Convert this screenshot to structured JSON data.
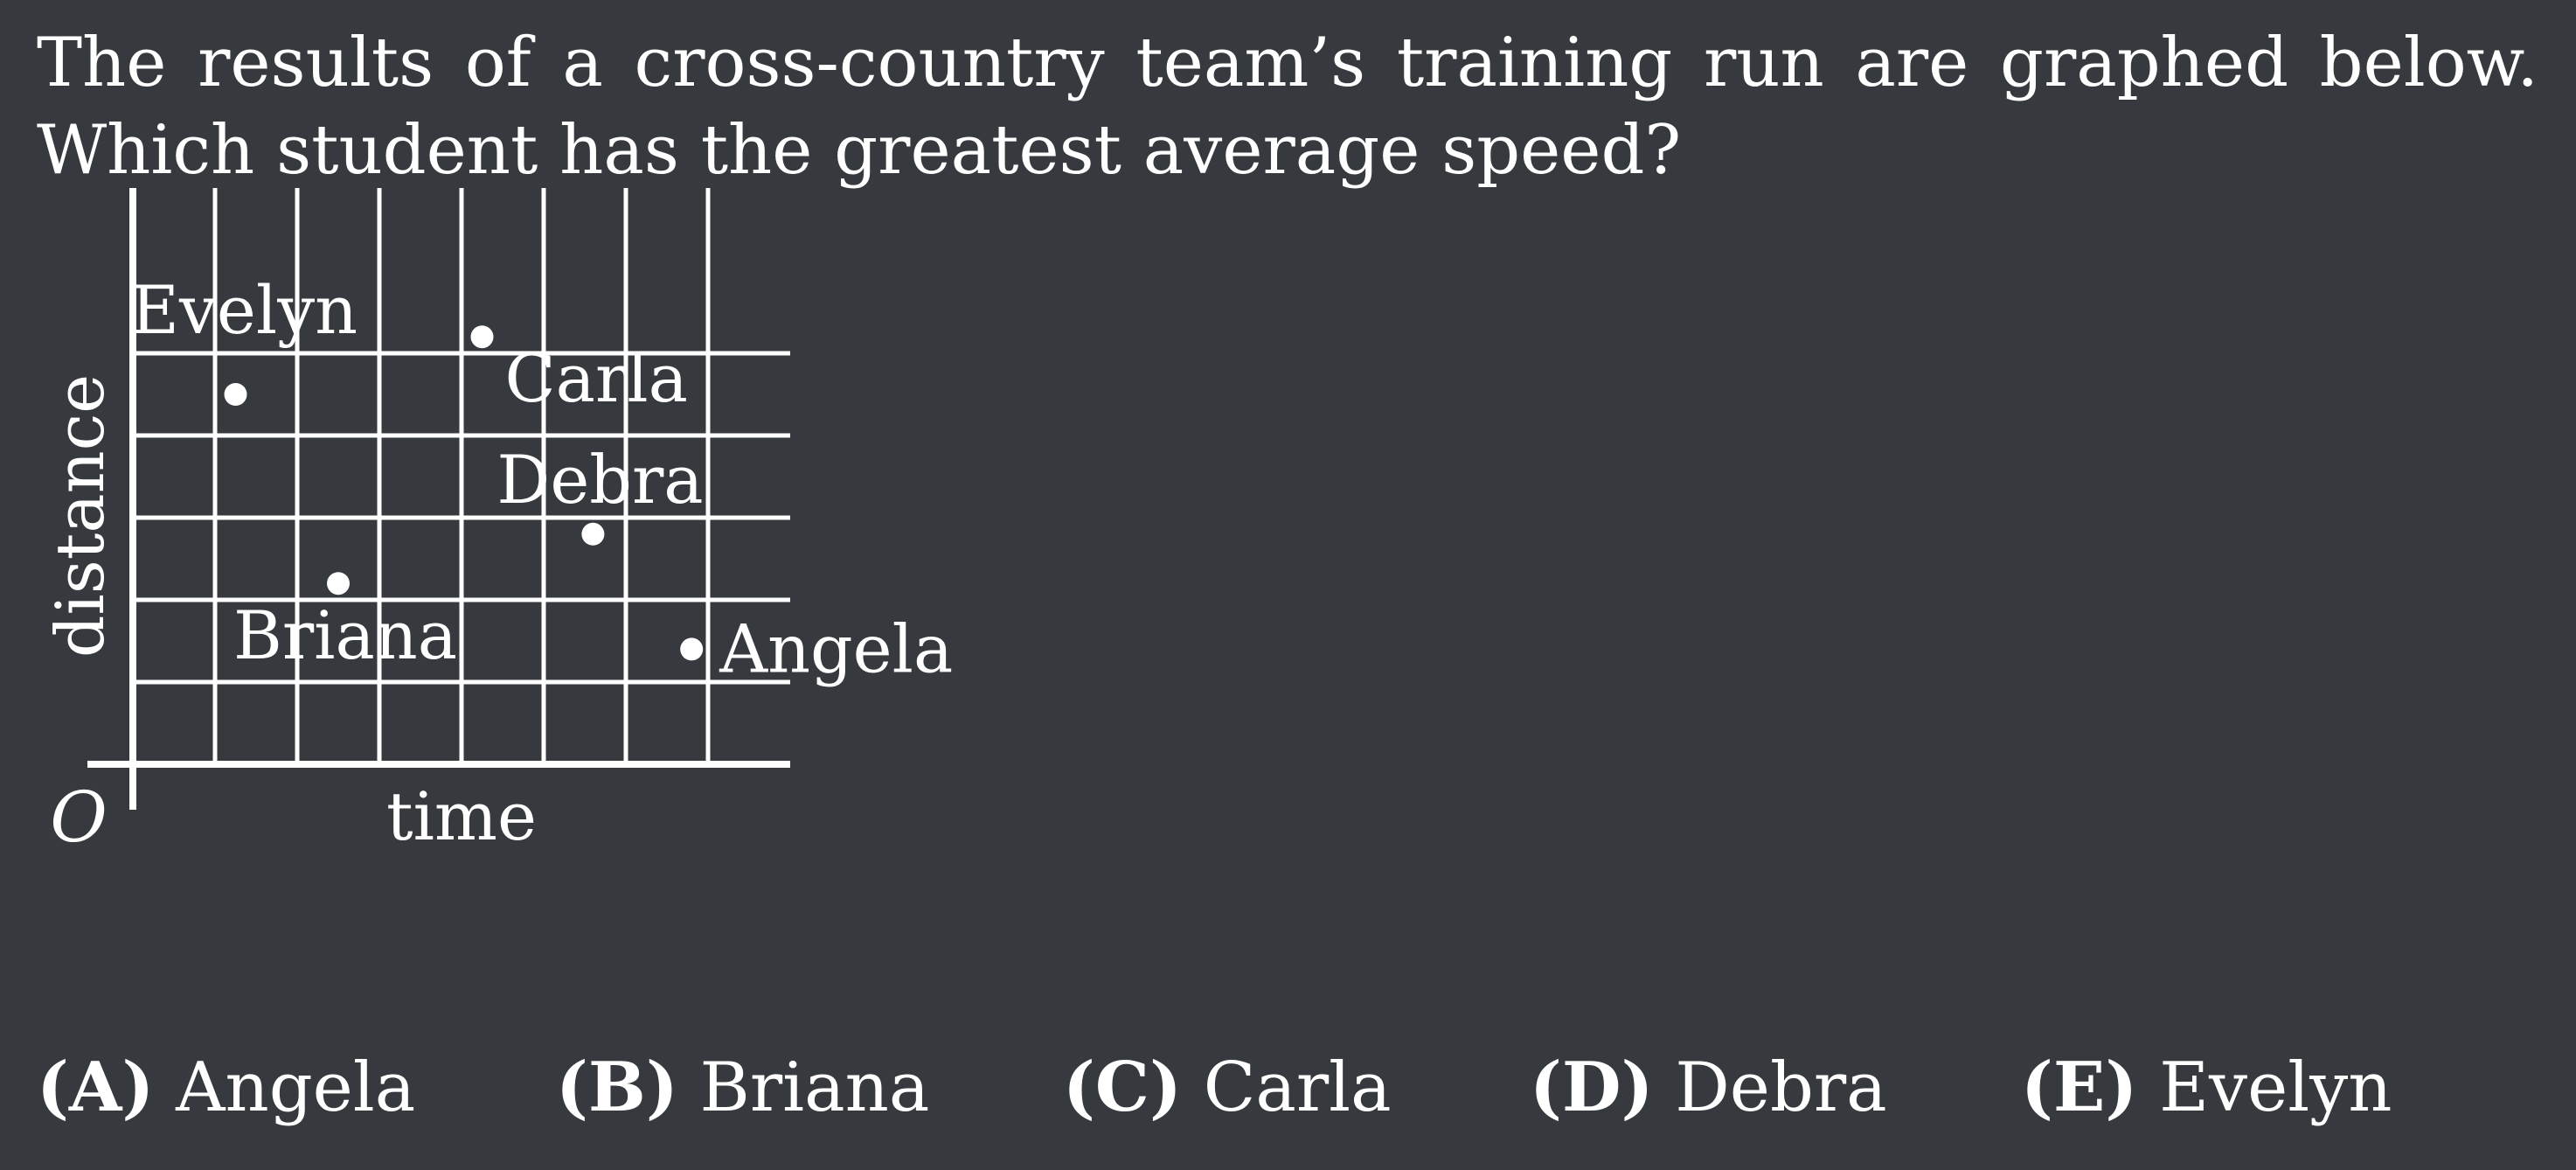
{
  "question": {
    "text": "The results of a cross-country team’s training run are graphed below. Which student has the greatest average speed?"
  },
  "chart_data": {
    "type": "scatter",
    "xlabel": "time",
    "ylabel": "distance",
    "origin_label": "O",
    "xlim": [
      0,
      8
    ],
    "ylim": [
      0,
      6
    ],
    "grid": true,
    "points": [
      {
        "name": "Evelyn",
        "x": 1.25,
        "y": 4.5
      },
      {
        "name": "Carla",
        "x": 4.25,
        "y": 5.2
      },
      {
        "name": "Debra",
        "x": 5.6,
        "y": 2.8
      },
      {
        "name": "Briana",
        "x": 2.5,
        "y": 2.2
      },
      {
        "name": "Angela",
        "x": 6.8,
        "y": 1.4
      }
    ]
  },
  "choices": [
    {
      "letter": "(A)",
      "text": "Angela"
    },
    {
      "letter": "(B)",
      "text": "Briana"
    },
    {
      "letter": "(C)",
      "text": "Carla"
    },
    {
      "letter": "(D)",
      "text": "Debra"
    },
    {
      "letter": "(E)",
      "text": "Evelyn"
    }
  ]
}
